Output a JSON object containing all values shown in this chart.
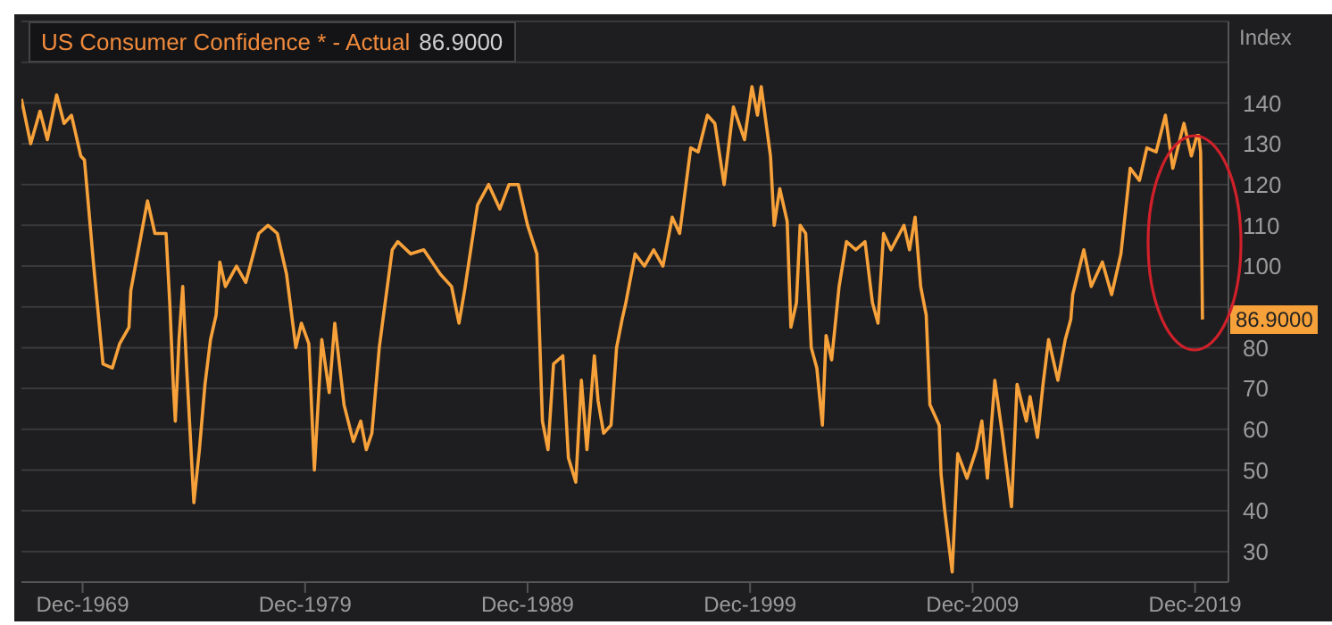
{
  "chart_data": {
    "type": "line",
    "title": "US Consumer Confidence * - Actual",
    "subtitle": "86.9000",
    "ylabel": "Index",
    "x": [
      "1967-03",
      "1967-08",
      "1968-01",
      "1968-05",
      "1968-10",
      "1969-02",
      "1969-06",
      "1969-11",
      "1970-01",
      "1970-06",
      "1970-11",
      "1971-04",
      "1971-08",
      "1972-01",
      "1972-02",
      "1972-11",
      "1973-03",
      "1973-09",
      "1973-11",
      "1974-01",
      "1974-02",
      "1974-04",
      "1974-06",
      "1974-08",
      "1974-12",
      "1975-03",
      "1975-06",
      "1975-09",
      "1975-12",
      "1976-02",
      "1976-05",
      "1976-11",
      "1977-04",
      "1977-11",
      "1978-04",
      "1978-09",
      "1979-02",
      "1979-07",
      "1979-10",
      "1980-02",
      "1980-05",
      "1980-09",
      "1981-01",
      "1981-04",
      "1981-09",
      "1982-02",
      "1982-06",
      "1982-09",
      "1982-12",
      "1983-04",
      "1983-06",
      "1983-11",
      "1984-02",
      "1984-09",
      "1985-04",
      "1986-01",
      "1986-07",
      "1986-11",
      "1987-02",
      "1987-09",
      "1988-03",
      "1988-09",
      "1989-02",
      "1989-07",
      "1989-12",
      "1990-05",
      "1990-08",
      "1990-11",
      "1991-02",
      "1991-07",
      "1991-10",
      "1992-02",
      "1992-05",
      "1992-08",
      "1992-12",
      "1993-02",
      "1993-05",
      "1993-09",
      "1993-12",
      "1994-03",
      "1994-05",
      "1994-10",
      "1995-03",
      "1995-08",
      "1996-01",
      "1996-06",
      "1996-10",
      "1997-04",
      "1997-08",
      "1998-01",
      "1998-05",
      "1998-10",
      "1999-03",
      "1999-09",
      "2000-01",
      "2000-04",
      "2000-06",
      "2000-11",
      "2001-01",
      "2001-04",
      "2001-08",
      "2001-10",
      "2002-01",
      "2002-03",
      "2002-06",
      "2002-09",
      "2002-12",
      "2003-03",
      "2003-05",
      "2003-08",
      "2003-12",
      "2004-04",
      "2004-09",
      "2005-02",
      "2005-06",
      "2005-09",
      "2005-12",
      "2006-04",
      "2006-11",
      "2007-02",
      "2007-05",
      "2007-08",
      "2007-11",
      "2008-01",
      "2008-06",
      "2008-07",
      "2008-09",
      "2009-01",
      "2009-04",
      "2009-09",
      "2010-02",
      "2010-05",
      "2010-08",
      "2010-12",
      "2011-04",
      "2011-09",
      "2011-12",
      "2012-05",
      "2012-07",
      "2012-11",
      "2013-02",
      "2013-05",
      "2013-10",
      "2014-02",
      "2014-05",
      "2014-06",
      "2014-12",
      "2015-04",
      "2015-10",
      "2016-03",
      "2016-08",
      "2017-01",
      "2017-06",
      "2017-10",
      "2018-03",
      "2018-08",
      "2018-12",
      "2019-06",
      "2019-10",
      "2020-01",
      "2020-02",
      "2020-03",
      "2020-04"
    ],
    "series": [
      {
        "color": "#f7a13a",
        "values": [
          141,
          130,
          138,
          131,
          142,
          135,
          137,
          127,
          126,
          100,
          76,
          75,
          81,
          85,
          94,
          116,
          108,
          108,
          91,
          70,
          62,
          82,
          95,
          76,
          42,
          55,
          71,
          82,
          88,
          101,
          95,
          100,
          96,
          108,
          110,
          108,
          98,
          80,
          86,
          81,
          50,
          82,
          69,
          86,
          66,
          57,
          62,
          55,
          59,
          80,
          87,
          104,
          106,
          103,
          104,
          98,
          95,
          86,
          94,
          115,
          120,
          114,
          120,
          120,
          110,
          103,
          62,
          55,
          76,
          78,
          53,
          47,
          72,
          55,
          78,
          67,
          59,
          61,
          80,
          87,
          91,
          103,
          100,
          104,
          100,
          112,
          108,
          129,
          128,
          137,
          135,
          120,
          139,
          131,
          144,
          137,
          144,
          127,
          110,
          119,
          111,
          85,
          91,
          110,
          108,
          80,
          75,
          61,
          83,
          77,
          95,
          106,
          104,
          106,
          91,
          86,
          108,
          104,
          110,
          104,
          112,
          95,
          88,
          66,
          61,
          49,
          40,
          25,
          54,
          48,
          55,
          62,
          48,
          72,
          59,
          41,
          71,
          62,
          68,
          58,
          71,
          82,
          72,
          82,
          87,
          93,
          104,
          95,
          101,
          93,
          103,
          124,
          121,
          129,
          128,
          137,
          124,
          135,
          127,
          132,
          132,
          128,
          86.9
        ]
      }
    ],
    "xlim": [
      "1967-03",
      "2021-06"
    ],
    "xticks": [
      {
        "value": "1969-12",
        "label": "Dec-1969"
      },
      {
        "value": "1979-12",
        "label": "Dec-1979"
      },
      {
        "value": "1989-12",
        "label": "Dec-1989"
      },
      {
        "value": "1999-12",
        "label": "Dec-1999"
      },
      {
        "value": "2009-12",
        "label": "Dec-2009"
      },
      {
        "value": "2019-12",
        "label": "Dec-2019"
      }
    ],
    "ylim": [
      22.5,
      160
    ],
    "yticks": [
      30,
      40,
      50,
      60,
      70,
      80,
      {
        "value": 90,
        "label": null
      },
      100,
      110,
      120,
      130,
      140,
      {
        "value": 150,
        "label": null
      }
    ],
    "annotations": [
      {
        "text": "86.9000",
        "x": "2020-04",
        "y": 86.9
      }
    ],
    "grid": "y",
    "legend": false,
    "marker": "none",
    "line_style": "solid"
  }
}
